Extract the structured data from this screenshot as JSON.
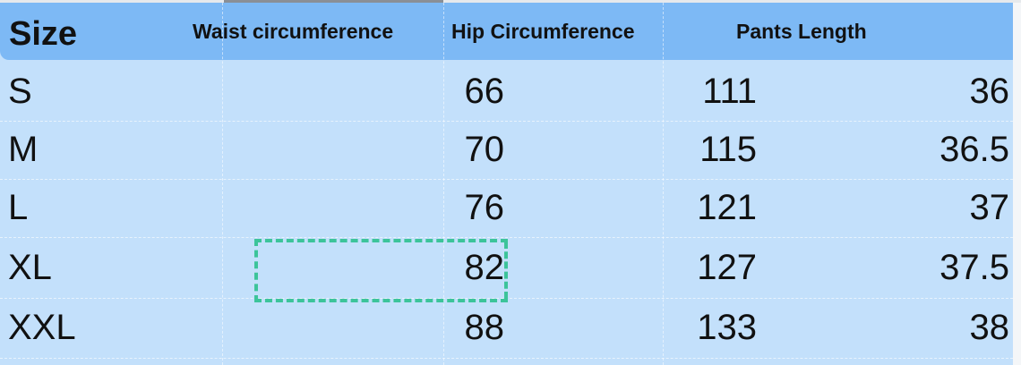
{
  "table": {
    "headers": [
      "Size",
      "Waist circumference",
      "Hip Circumference",
      "Pants Length"
    ],
    "rows": [
      {
        "size": "S",
        "waist": "66",
        "hip": "111",
        "pants": "36"
      },
      {
        "size": "M",
        "waist": "70",
        "hip": "115",
        "pants": "36.5"
      },
      {
        "size": "L",
        "waist": "76",
        "hip": "121",
        "pants": "37"
      },
      {
        "size": "XL",
        "waist": "82",
        "hip": "127",
        "pants": "37.5"
      },
      {
        "size": "XXL",
        "waist": "88",
        "hip": "133",
        "pants": "38"
      }
    ],
    "selected_cell": {
      "row": "XL",
      "column": "Waist circumference"
    }
  },
  "colors": {
    "header_bg": "#7db9f5",
    "body_bg": "#c3e0fb",
    "selection": "#3cc49a"
  }
}
